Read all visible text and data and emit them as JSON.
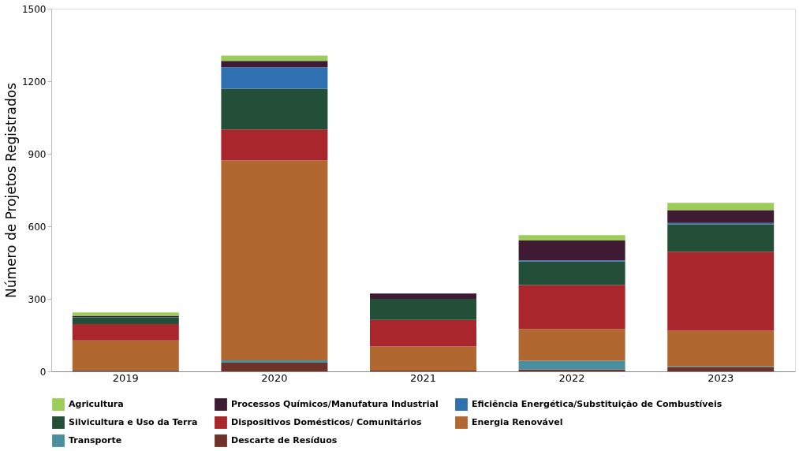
{
  "chart_data": {
    "type": "bar",
    "stacked": true,
    "ylabel": "Número de Projetos Registrados",
    "categories": [
      "2019",
      "2020",
      "2021",
      "2022",
      "2023"
    ],
    "ylim": [
      0,
      1500
    ],
    "yticks": [
      0,
      300,
      600,
      900,
      1200,
      1500
    ],
    "grid": false,
    "legend": "bottom",
    "series": [
      {
        "name": "Descarte de Resíduos",
        "color": "#6e3228",
        "values": [
          5,
          36,
          3,
          7,
          16
        ]
      },
      {
        "name": "Transporte",
        "color": "#4a8fa0",
        "values": [
          0,
          10,
          0,
          37,
          4
        ]
      },
      {
        "name": "Energia Renovável",
        "color": "#b06830",
        "values": [
          123,
          826,
          100,
          131,
          149
        ]
      },
      {
        "name": "Dispositivos Domésticos/ Comunitários",
        "color": "#a8262c",
        "values": [
          68,
          128,
          110,
          182,
          326
        ]
      },
      {
        "name": "Silvicultura e Uso da Terra",
        "color": "#234f38",
        "values": [
          26,
          169,
          87,
          97,
          113
        ]
      },
      {
        "name": "Eficiência Energética/Substituição de Combustíveis",
        "color": "#2e70b0",
        "values": [
          2,
          89,
          0,
          5,
          6
        ]
      },
      {
        "name": "Processos Químicos/Manufatura Industrial",
        "color": "#3e1a33",
        "values": [
          6,
          26,
          22,
          82,
          53
        ]
      },
      {
        "name": "Agricultura",
        "color": "#9ccc5a",
        "values": [
          14,
          22,
          0,
          22,
          30
        ]
      }
    ]
  }
}
